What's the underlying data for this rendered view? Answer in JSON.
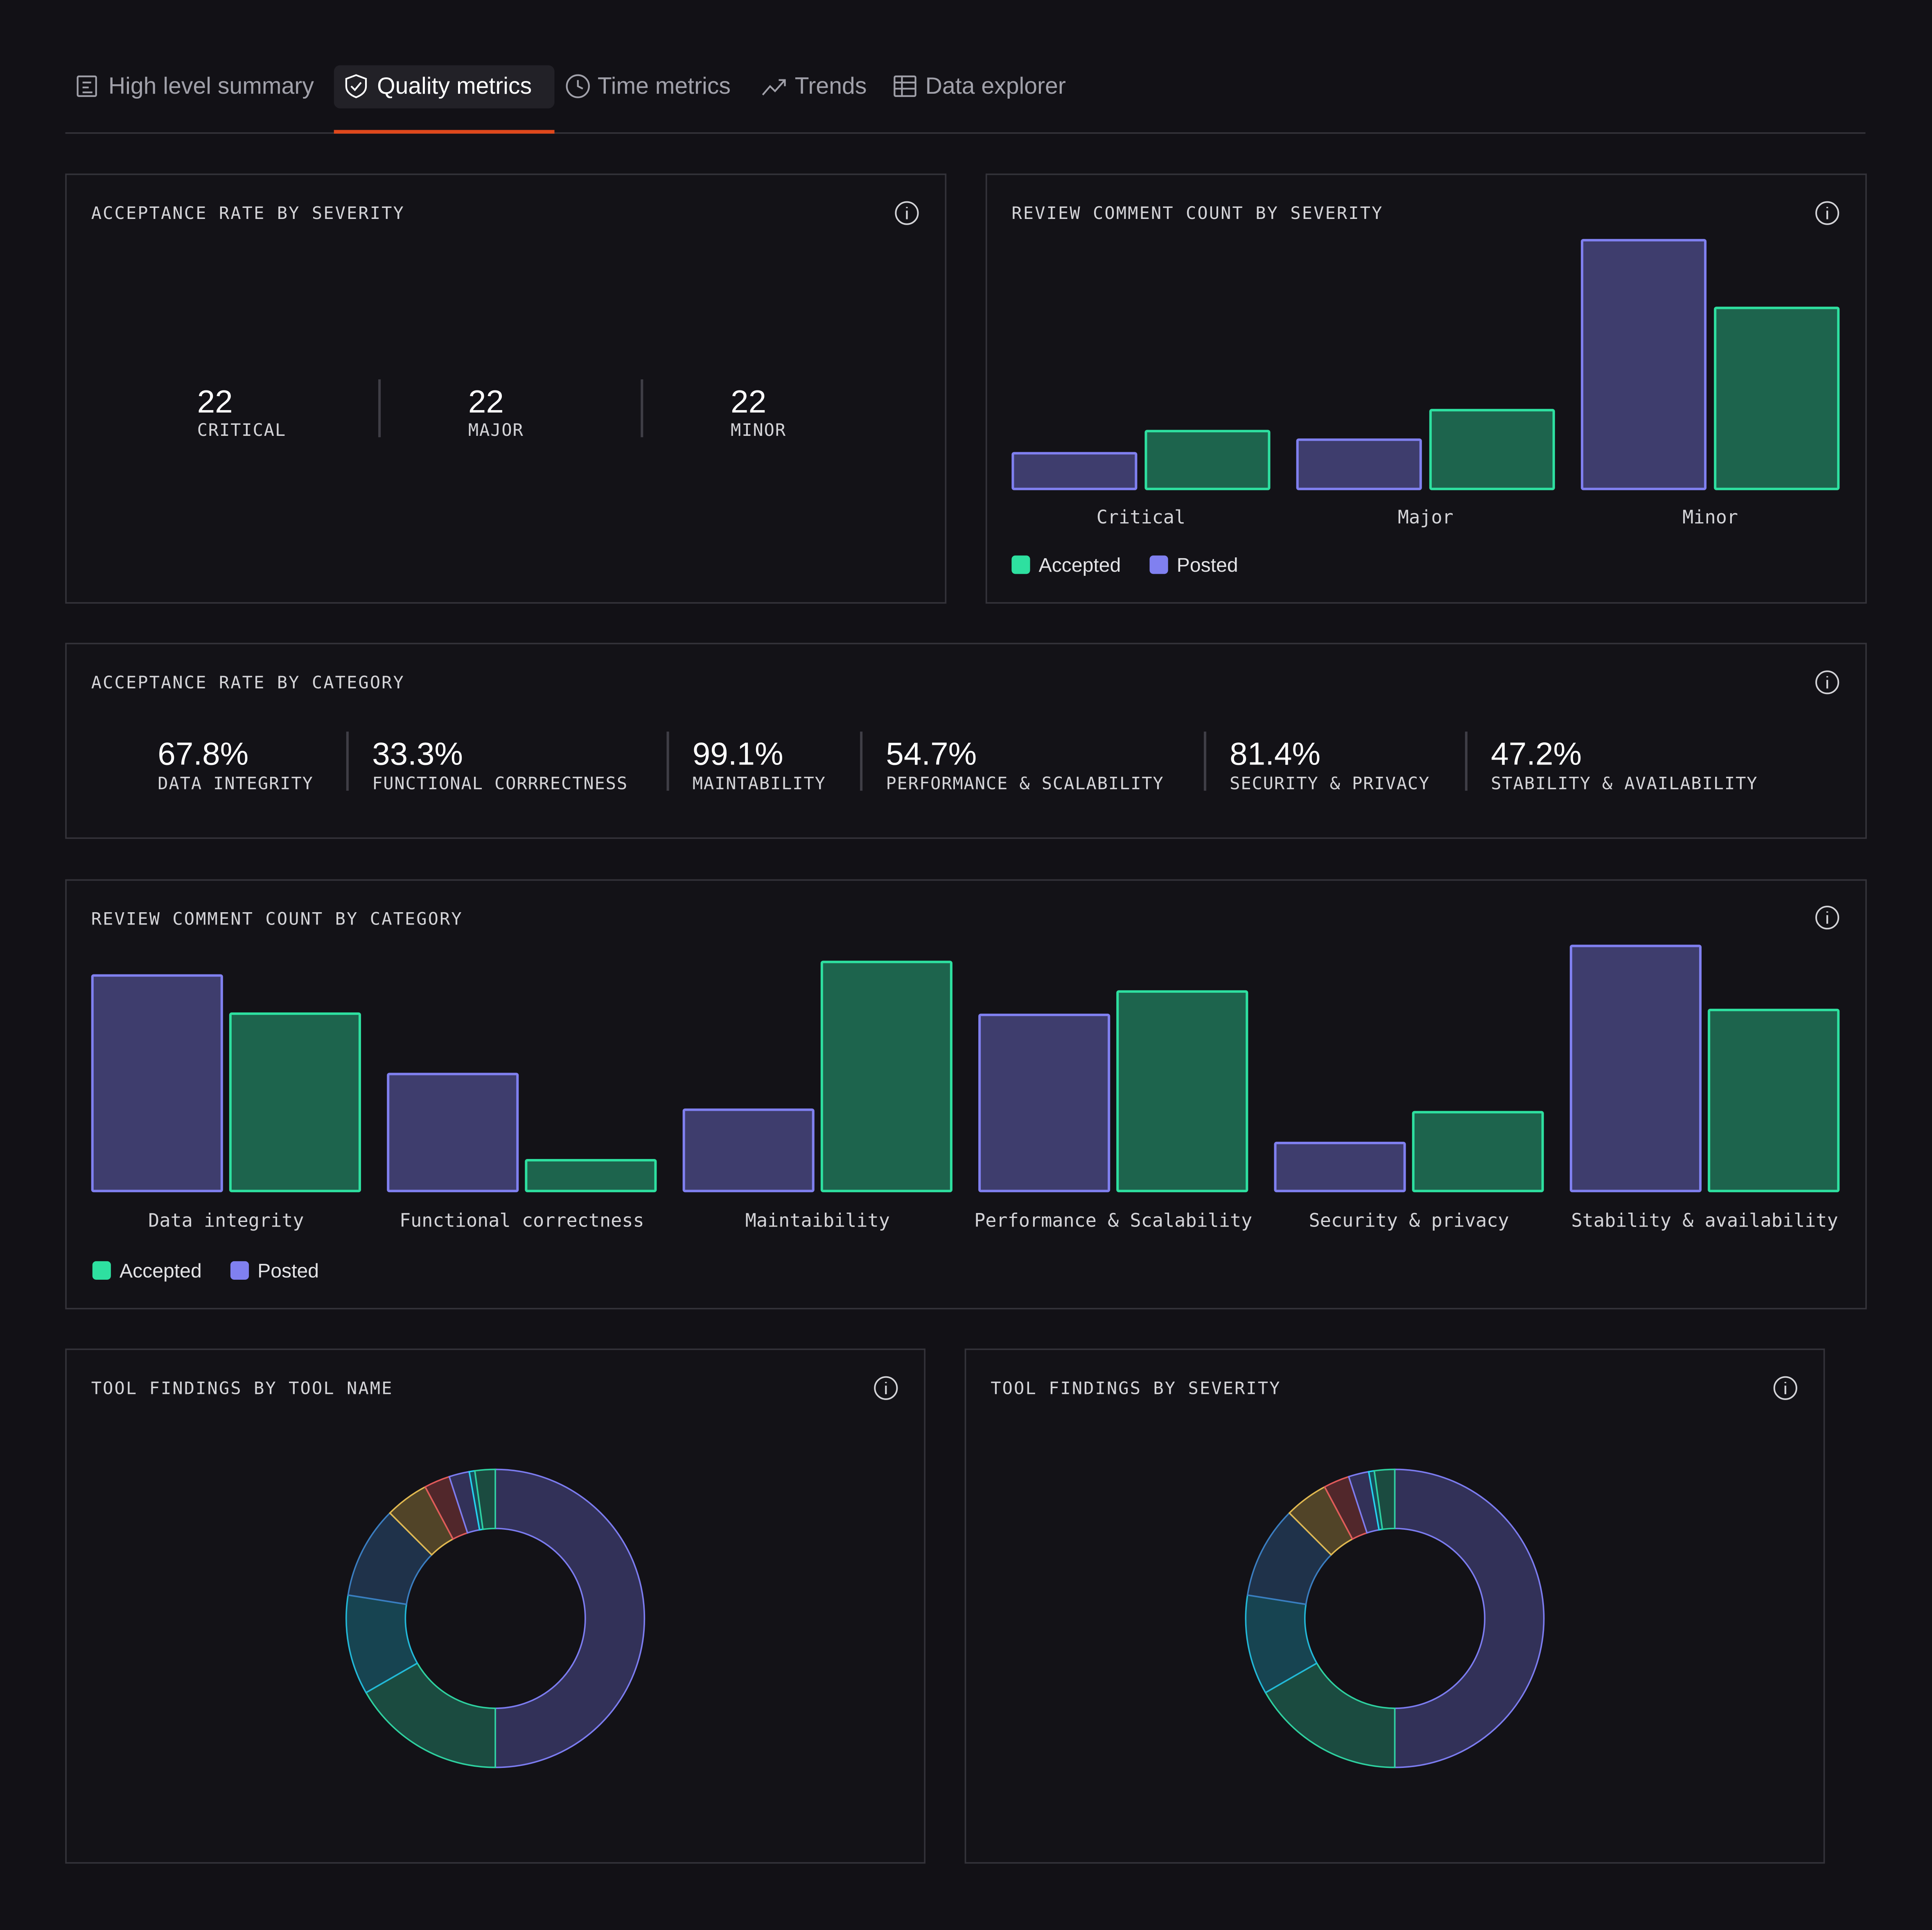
{
  "tabs": [
    "High level summary",
    "Quality metrics",
    "Time metrics",
    "Trends",
    "Data explorer"
  ],
  "active_tab": 1,
  "severity_acceptance": {
    "title": "ACCEPTANCE RATE BY SEVERITY",
    "items": [
      {
        "value": "22",
        "label": "CRITICAL"
      },
      {
        "value": "22",
        "label": "MAJOR"
      },
      {
        "value": "22",
        "label": "MINOR"
      }
    ]
  },
  "category_acceptance": {
    "title": "ACCEPTANCE RATE BY CATEGORY",
    "items": [
      {
        "value": "67.8%",
        "label": "DATA INTEGRITY"
      },
      {
        "value": "33.3%",
        "label": "FUNCTIONAL CORRRECTNESS"
      },
      {
        "value": "99.1%",
        "label": "MAINTABILITY"
      },
      {
        "value": "54.7%",
        "label": "PERFORMANCE & SCALABILITY"
      },
      {
        "value": "81.4%",
        "label": "SECURITY & PRIVACY"
      },
      {
        "value": "47.2%",
        "label": "STABILITY & AVAILABILITY"
      }
    ]
  },
  "chart_data": [
    {
      "type": "bar",
      "title": "REVIEW COMMENT COUNT BY SEVERITY",
      "categories": [
        "Critical",
        "Major",
        "Minor"
      ],
      "series": [
        {
          "name": "Accepted",
          "color": "#2ee0a0",
          "values": [
            47,
            64,
            147
          ]
        },
        {
          "name": "Posted",
          "color": "#8080f0",
          "values": [
            29,
            40,
            202
          ]
        }
      ],
      "ylim": [
        0,
        205
      ]
    },
    {
      "type": "bar",
      "title": "REVIEW COMMENT COUNT BY CATEGORY",
      "categories": [
        "Data integrity",
        "Functional correctness",
        "Maintaibility",
        "Performance & Scalability",
        "Security & privacy",
        "Stability & availability"
      ],
      "series": [
        {
          "name": "Accepted",
          "color": "#2ee0a0",
          "values": [
            144,
            25,
            186,
            162,
            64,
            147
          ]
        },
        {
          "name": "Posted",
          "color": "#8080f0",
          "values": [
            175,
            95,
            66,
            143,
            39,
            199
          ]
        }
      ],
      "ylim": [
        0,
        200
      ]
    },
    {
      "type": "pie",
      "title": "TOOL FINDINGS BY TOOL NAME",
      "values": [
        50,
        16.7,
        10.8,
        10,
        4.7,
        2.8,
        2.2,
        0.6,
        2.2
      ],
      "colors": [
        "#7c7cf0",
        "#2ed1a0",
        "#22b8d8",
        "#3a7dc0",
        "#e0b850",
        "#e05a5a",
        "#7c7cf0",
        "#22d3ee",
        "#2ed1a0"
      ]
    },
    {
      "type": "pie",
      "title": "TOOL FINDINGS BY SEVERITY",
      "values": [
        50,
        16.7,
        10.8,
        10,
        4.7,
        2.8,
        2.2,
        0.6,
        2.2
      ],
      "colors": [
        "#7c7cf0",
        "#2ed1a0",
        "#22b8d8",
        "#3a7dc0",
        "#e0b850",
        "#e05a5a",
        "#7c7cf0",
        "#22d3ee",
        "#2ed1a0"
      ]
    }
  ]
}
